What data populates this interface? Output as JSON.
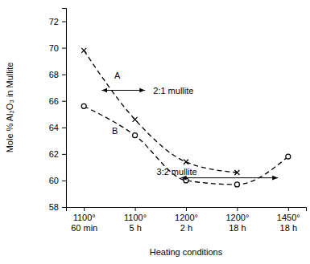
{
  "chart_data": {
    "type": "line",
    "x_label": "Heating conditions",
    "y_label": "Mole % Al₂O₃ in Mullite",
    "categories": [
      "1100°\n60 min",
      "1100°\n5 h",
      "1200°\n2 h",
      "1200°\n18 h",
      "1450°\n18 h"
    ],
    "series": [
      {
        "name": "A",
        "color": "#000000",
        "marker": "x",
        "line_style": "dashed",
        "values": [
          69.8,
          64.6,
          61.4,
          60.6,
          null
        ]
      },
      {
        "name": "B",
        "color": "#000000",
        "marker": "circle",
        "line_style": "dashed",
        "values": [
          65.6,
          63.4,
          60.0,
          59.7,
          61.8
        ]
      }
    ],
    "ylim": [
      58,
      73
    ],
    "yticks": [
      58,
      60,
      62,
      64,
      66,
      68,
      70,
      72
    ],
    "annotations": [
      {
        "text": "2:1 mullite",
        "y": 66.8,
        "x": [
          0.35,
          1.2
        ]
      },
      {
        "text": "3:2 mullite",
        "y": 60.2,
        "x": [
          1.9,
          3.8
        ]
      }
    ]
  }
}
